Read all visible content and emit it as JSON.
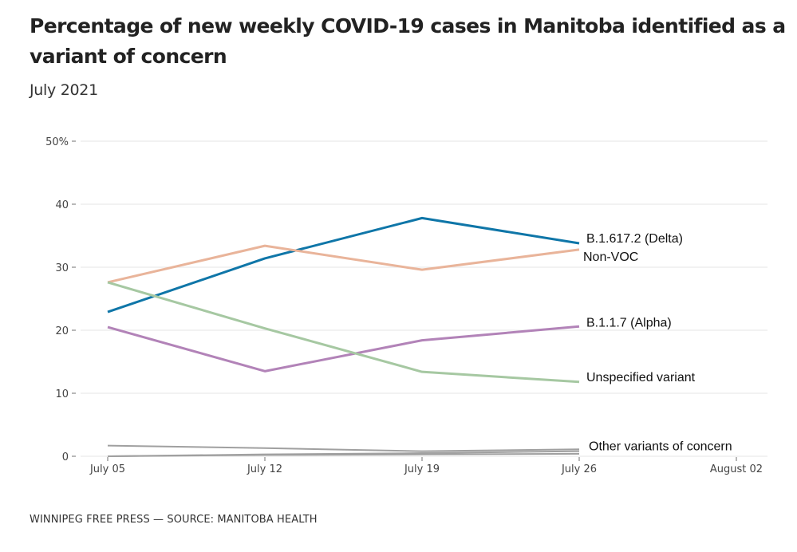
{
  "title": "Percentage of new weekly COVID-19 cases in Manitoba identified as a variant of concern",
  "subtitle": "July 2021",
  "footer": "WINNIPEG FREE PRESS — SOURCE: MANITOBA HEALTH",
  "chart_data": {
    "type": "line",
    "title": "Percentage of new weekly COVID-19 cases in Manitoba identified as a variant of concern",
    "subtitle": "July 2021",
    "xlabel": "",
    "ylabel": "",
    "x": [
      "July 05",
      "July 12",
      "July 19",
      "July 26"
    ],
    "x_ticks": [
      "July 05",
      "July 12",
      "July 19",
      "July 26",
      "August 02"
    ],
    "y_ticks": [
      0,
      10,
      20,
      30,
      40,
      50
    ],
    "y_tick_labels": [
      "0",
      "10",
      "20",
      "30",
      "40",
      "50%"
    ],
    "ylim": [
      0,
      50
    ],
    "grid": true,
    "legend": "direct-labels-right",
    "series": [
      {
        "name": "B.1.617.2 (Delta)",
        "label": "B.1.617.2 (Delta)",
        "color": "#0f76a8",
        "values": [
          22.9,
          31.4,
          37.8,
          33.8
        ]
      },
      {
        "name": "Non-VOC",
        "label": "Non-VOC",
        "color": "#e9b49a",
        "values": [
          27.6,
          33.4,
          29.6,
          32.8
        ]
      },
      {
        "name": "B.1.1.7 (Alpha)",
        "label": "B.1.1.7 (Alpha)",
        "color": "#b283b8",
        "values": [
          20.5,
          13.5,
          18.4,
          20.6
        ]
      },
      {
        "name": "Unspecified variant",
        "label": "Unspecified variant",
        "color": "#a6c8a2",
        "values": [
          27.6,
          20.3,
          13.4,
          11.8
        ]
      },
      {
        "name": "Other variants of concern (1)",
        "label": "Other variants of concern",
        "color": "#a0a0a0",
        "values": [
          1.7,
          1.3,
          0.8,
          1.1
        ]
      },
      {
        "name": "Other variants of concern (2)",
        "label": "",
        "color": "#a0a0a0",
        "values": [
          0.0,
          0.3,
          0.5,
          0.8
        ]
      },
      {
        "name": "Other variants of concern (3)",
        "label": "",
        "color": "#a0a0a0",
        "values": [
          0.0,
          0.2,
          0.3,
          0.4
        ]
      }
    ]
  }
}
